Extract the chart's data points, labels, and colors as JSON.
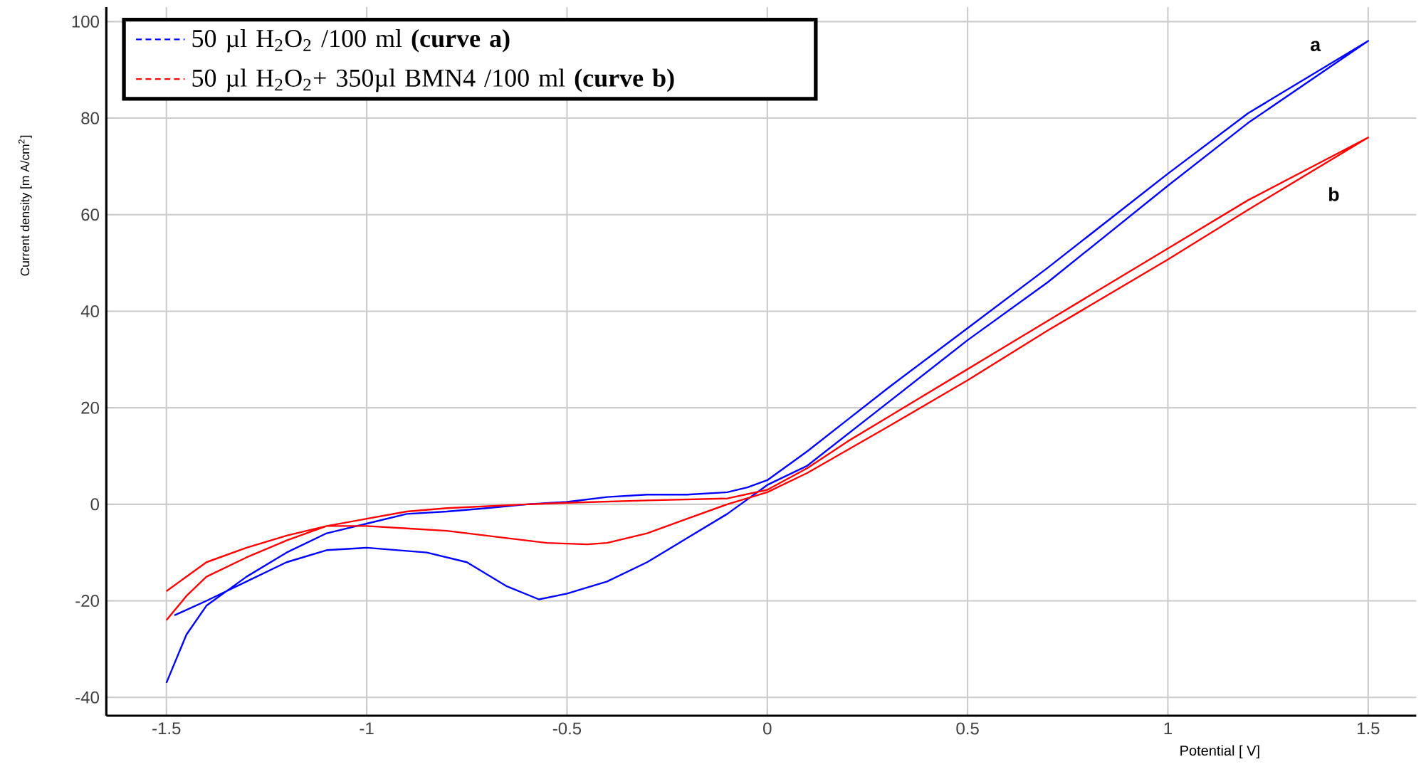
{
  "chart_data": {
    "type": "line",
    "xlabel": "Potential [ V]",
    "ylabel": "Current density [m A/cm$^{2}$]",
    "xlim": [
      -1.65,
      1.62
    ],
    "ylim": [
      -43.8,
      103
    ],
    "xticks": [
      -1.5,
      -1,
      -0.5,
      0,
      0.5,
      1,
      1.5
    ],
    "yticks": [
      -40,
      -20,
      0,
      20,
      40,
      60,
      80,
      100
    ],
    "grid": true,
    "legend": "top left",
    "series": [
      {
        "name": "50 µl H$_{2}$O$_{2}$ /100 ml **(curve a)**",
        "color": "#0000ff",
        "x": [
          -1.5,
          -1.45,
          -1.4,
          -1.3,
          -1.2,
          -1.1,
          -1.0,
          -0.9,
          -0.8,
          -0.7,
          -0.6,
          -0.5,
          -0.4,
          -0.3,
          -0.2,
          -0.1,
          -0.05,
          0,
          0.1,
          0.2,
          0.3,
          0.5,
          0.7,
          1.0,
          1.2,
          1.5,
          1.2,
          1.0,
          0.7,
          0.5,
          0.3,
          0.1,
          0,
          -0.1,
          -0.2,
          -0.3,
          -0.4,
          -0.5,
          -0.57,
          -0.65,
          -0.75,
          -0.85,
          -1.0,
          -1.1,
          -1.2,
          -1.3,
          -1.4,
          -1.48
        ],
        "values": [
          -37,
          -27,
          -21,
          -15,
          -10,
          -6,
          -4,
          -2,
          -1.5,
          -0.8,
          0,
          0.5,
          1.5,
          2,
          2,
          2.5,
          3.5,
          5,
          11,
          17.5,
          24,
          36.5,
          49,
          68.5,
          81,
          96,
          79,
          66,
          46,
          34,
          21,
          8,
          4,
          -2,
          -7,
          -12,
          -16,
          -18.5,
          -19.7,
          -17,
          -12,
          -10,
          -9,
          -9.5,
          -12,
          -16,
          -20,
          -23
        ]
      },
      {
        "name": "50 µl H$_{2}$O$_{2}$+ 350µl BMN4 /100 ml **(curve b)**",
        "color": "#ff0000",
        "x": [
          -1.5,
          -1.45,
          -1.4,
          -1.3,
          -1.2,
          -1.1,
          -1.0,
          -0.9,
          -0.8,
          -0.6,
          -0.5,
          -0.3,
          -0.1,
          0,
          0.1,
          0.2,
          0.3,
          0.5,
          0.7,
          1.0,
          1.2,
          1.5,
          1.2,
          1.0,
          0.7,
          0.5,
          0.3,
          0.1,
          0,
          -0.1,
          -0.2,
          -0.3,
          -0.4,
          -0.45,
          -0.55,
          -0.65,
          -0.8,
          -0.9,
          -1.0,
          -1.1,
          -1.2,
          -1.3,
          -1.4,
          -1.5
        ],
        "values": [
          -24,
          -19,
          -15,
          -11,
          -7.5,
          -4.5,
          -3,
          -1.5,
          -0.8,
          0,
          0.3,
          0.8,
          1.2,
          3,
          7.5,
          13,
          18,
          28,
          38,
          53,
          63,
          76,
          61,
          50.7,
          36,
          25.7,
          16,
          6.5,
          2.5,
          0,
          -3,
          -6,
          -8,
          -8.3,
          -8,
          -7,
          -5.5,
          -5,
          -4.5,
          -4.5,
          -6.5,
          -9,
          -12,
          -18
        ]
      }
    ],
    "annotations": [
      "a",
      "b"
    ]
  }
}
